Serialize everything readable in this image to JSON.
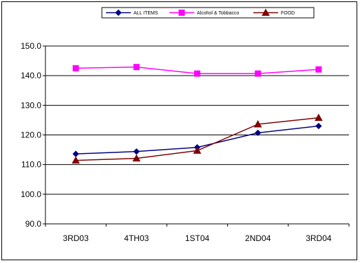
{
  "chart_data": {
    "type": "line",
    "title": "",
    "xlabel": "",
    "ylabel": "",
    "categories": [
      "3RD03",
      "4TH03",
      "1ST04",
      "2ND04",
      "3RD04"
    ],
    "ylim": [
      90,
      150
    ],
    "yticks": [
      "90.0",
      "100.0",
      "110.0",
      "120.0",
      "130.0",
      "140.0",
      "150.0"
    ],
    "grid": "horizontal",
    "legend_position": "top",
    "series": [
      {
        "name": "ALL ITEMS",
        "color": "#000080",
        "marker": "diamond",
        "values": [
          113.6,
          114.4,
          115.8,
          120.7,
          123.0
        ]
      },
      {
        "name": "Alcohol & Tobbacco",
        "color": "#ff00ff",
        "marker": "square",
        "values": [
          142.5,
          142.9,
          140.7,
          140.7,
          142.1
        ]
      },
      {
        "name": "FOOD",
        "color": "#800000",
        "marker": "triangle",
        "values": [
          111.4,
          112.1,
          114.7,
          123.6,
          125.8
        ]
      }
    ]
  }
}
